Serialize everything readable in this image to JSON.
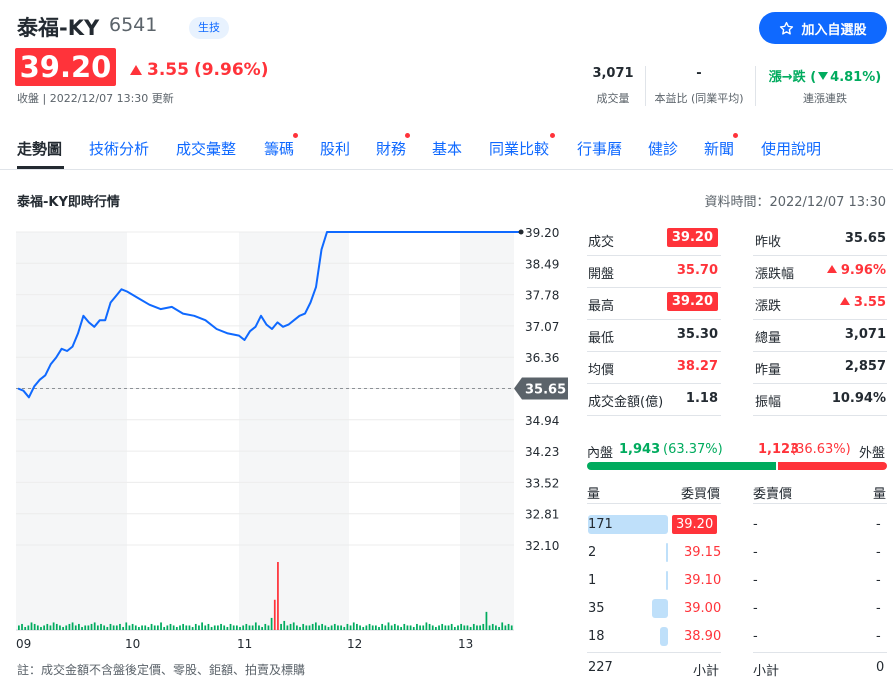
{
  "stock": {
    "name": "泰福-KY",
    "code": "6541",
    "sector": "生技",
    "price": "39.20",
    "change": "3.55",
    "change_pct": "(9.96%)",
    "close_label": "收盤 | 2022/12/07 13:30 更新"
  },
  "watch_button": {
    "label": "加入自選股",
    "icon": "star-outline-icon"
  },
  "stats": {
    "volume": {
      "value": "3,071",
      "label": "成交量"
    },
    "pe": {
      "value": "-",
      "label": "本益比 (同業平均)"
    },
    "streak": {
      "prefix": "漲→跌 (",
      "value": "4.81%)",
      "label": "連漲連跌"
    }
  },
  "tabs": [
    {
      "label": "走勢圖",
      "dot": false
    },
    {
      "label": "技術分析",
      "dot": false
    },
    {
      "label": "成交彙整",
      "dot": false
    },
    {
      "label": "籌碼",
      "dot": true
    },
    {
      "label": "股利",
      "dot": false
    },
    {
      "label": "財務",
      "dot": true
    },
    {
      "label": "基本",
      "dot": false
    },
    {
      "label": "同業比較",
      "dot": true
    },
    {
      "label": "行事曆",
      "dot": false
    },
    {
      "label": "健診",
      "dot": false
    },
    {
      "label": "新聞",
      "dot": true
    },
    {
      "label": "使用說明",
      "dot": false
    }
  ],
  "chart_section": {
    "title": "泰福-KY即時行情",
    "data_time": "資料時間：2022/12/07 13:30",
    "note": "註：成交金額不含盤後定價、零股、鉅額、拍賣及標購"
  },
  "chart_data": {
    "type": "line",
    "x_ticks": [
      "09",
      "10",
      "11",
      "12",
      "13"
    ],
    "y_ticks": [
      "39.20",
      "38.49",
      "37.78",
      "37.07",
      "36.36",
      "35.65",
      "34.94",
      "34.23",
      "33.52",
      "32.81",
      "32.10"
    ],
    "ylim": [
      32.1,
      39.2
    ],
    "reference_price": "35.65",
    "last_price": 39.2,
    "price_series": [
      [
        0,
        35.65
      ],
      [
        0.05,
        35.6
      ],
      [
        0.1,
        35.45
      ],
      [
        0.15,
        35.7
      ],
      [
        0.2,
        35.85
      ],
      [
        0.25,
        35.95
      ],
      [
        0.3,
        36.2
      ],
      [
        0.35,
        36.35
      ],
      [
        0.4,
        36.55
      ],
      [
        0.45,
        36.5
      ],
      [
        0.5,
        36.6
      ],
      [
        0.55,
        36.9
      ],
      [
        0.6,
        37.3
      ],
      [
        0.65,
        37.15
      ],
      [
        0.7,
        37.05
      ],
      [
        0.75,
        37.2
      ],
      [
        0.8,
        37.2
      ],
      [
        0.85,
        37.6
      ],
      [
        0.9,
        37.75
      ],
      [
        0.95,
        37.9
      ],
      [
        1.0,
        37.85
      ],
      [
        1.1,
        37.7
      ],
      [
        1.2,
        37.55
      ],
      [
        1.3,
        37.45
      ],
      [
        1.4,
        37.5
      ],
      [
        1.5,
        37.35
      ],
      [
        1.6,
        37.3
      ],
      [
        1.7,
        37.2
      ],
      [
        1.8,
        37.0
      ],
      [
        1.9,
        36.9
      ],
      [
        2.0,
        36.85
      ],
      [
        2.05,
        36.75
      ],
      [
        2.1,
        36.95
      ],
      [
        2.15,
        37.05
      ],
      [
        2.2,
        37.3
      ],
      [
        2.25,
        37.1
      ],
      [
        2.3,
        37.0
      ],
      [
        2.35,
        37.15
      ],
      [
        2.4,
        37.05
      ],
      [
        2.45,
        37.1
      ],
      [
        2.5,
        37.2
      ],
      [
        2.55,
        37.3
      ],
      [
        2.6,
        37.35
      ],
      [
        2.65,
        37.6
      ],
      [
        2.7,
        37.95
      ],
      [
        2.75,
        38.8
      ],
      [
        2.8,
        39.2
      ],
      [
        2.9,
        39.2
      ],
      [
        3.5,
        39.2
      ],
      [
        4.0,
        39.2
      ],
      [
        4.5,
        39.2
      ],
      [
        4.55,
        39.2
      ]
    ],
    "volume_series": [
      3,
      4,
      2,
      3,
      5,
      4,
      3,
      2,
      3,
      4,
      3,
      5,
      4,
      3,
      2,
      3,
      4,
      5,
      3,
      4,
      2,
      3,
      3,
      4,
      5,
      3,
      4,
      3,
      2,
      4,
      3,
      3,
      4,
      2,
      5,
      3,
      4,
      3,
      2,
      3,
      3,
      2,
      4,
      3,
      3,
      5,
      2,
      3,
      4,
      3,
      2,
      3,
      4,
      3,
      3,
      2,
      4,
      3,
      5,
      3,
      4,
      2,
      3,
      3,
      4,
      3,
      2,
      4,
      3,
      3,
      2,
      3,
      4,
      3,
      3,
      5,
      3,
      2,
      4,
      3,
      8,
      20,
      45,
      4,
      6,
      3,
      4,
      5,
      3,
      2,
      4,
      3,
      3,
      4,
      5,
      3,
      4,
      3,
      2,
      3,
      4,
      3,
      3,
      2,
      4,
      3,
      5,
      4,
      3,
      2,
      3,
      4,
      3,
      3,
      2,
      4,
      3,
      5,
      3,
      4,
      3,
      2,
      4,
      3,
      3,
      2,
      4,
      3,
      3,
      5,
      4,
      3,
      2,
      3,
      4,
      3,
      3,
      4,
      2,
      3,
      4,
      3,
      3,
      2,
      4,
      3,
      3,
      4,
      12,
      3,
      4,
      3,
      2,
      5,
      3,
      4,
      3
    ],
    "volume_red_index": [
      81,
      82
    ],
    "colors": {
      "line": "#0f69ff",
      "vol_up": "#ff333a",
      "vol_down": "#00ab5e"
    }
  },
  "quote": [
    {
      "label": "成交",
      "value": "39.20",
      "style": "boxed",
      "label2": "昨收",
      "value2": "35.65",
      "style2": "dark"
    },
    {
      "label": "開盤",
      "value": "35.70",
      "style": "red",
      "label2": "漲跌幅",
      "value2": "9.96%",
      "style2": "red-up"
    },
    {
      "label": "最高",
      "value": "39.20",
      "style": "boxed",
      "label2": "漲跌",
      "value2": "3.55",
      "style2": "red-up"
    },
    {
      "label": "最低",
      "value": "35.30",
      "style": "dark-red",
      "label2": "總量",
      "value2": "3,071",
      "style2": "dark"
    },
    {
      "label": "均價",
      "value": "38.27",
      "style": "red",
      "label2": "昨量",
      "value2": "2,857",
      "style2": "dark"
    },
    {
      "label": "成交金額(億)",
      "value": "1.18",
      "style": "dark",
      "label2": "振幅",
      "value2": "10.94%",
      "style2": "dark"
    }
  ],
  "inner_outer": {
    "inner_label": "內盤",
    "inner_value": "1,943",
    "inner_pct": "(63.37%)",
    "outer_value": "1,123",
    "outer_pct": "(36.63%)",
    "outer_label": "外盤",
    "inner_fraction": 0.6337
  },
  "order_book": {
    "headers": {
      "qty": "量",
      "bid": "委買價",
      "ask": "委賣價",
      "qty2": "量"
    },
    "bids": [
      {
        "qty": "171",
        "price": "39.20",
        "boxed": true,
        "level": 1.0
      },
      {
        "qty": "2",
        "price": "39.15",
        "boxed": false,
        "level": 0.012
      },
      {
        "qty": "1",
        "price": "39.10",
        "boxed": false,
        "level": 0.006
      },
      {
        "qty": "35",
        "price": "39.00",
        "boxed": false,
        "level": 0.2
      },
      {
        "qty": "18",
        "price": "38.90",
        "boxed": false,
        "level": 0.105
      }
    ],
    "asks": [
      {
        "price": "-",
        "qty": "-"
      },
      {
        "price": "-",
        "qty": "-"
      },
      {
        "price": "-",
        "qty": "-"
      },
      {
        "price": "-",
        "qty": "-"
      },
      {
        "price": "-",
        "qty": "-"
      }
    ],
    "subtotal": {
      "bid_qty": "227",
      "bid_label": "小計",
      "ask_label": "小計",
      "ask_qty": "0"
    }
  }
}
